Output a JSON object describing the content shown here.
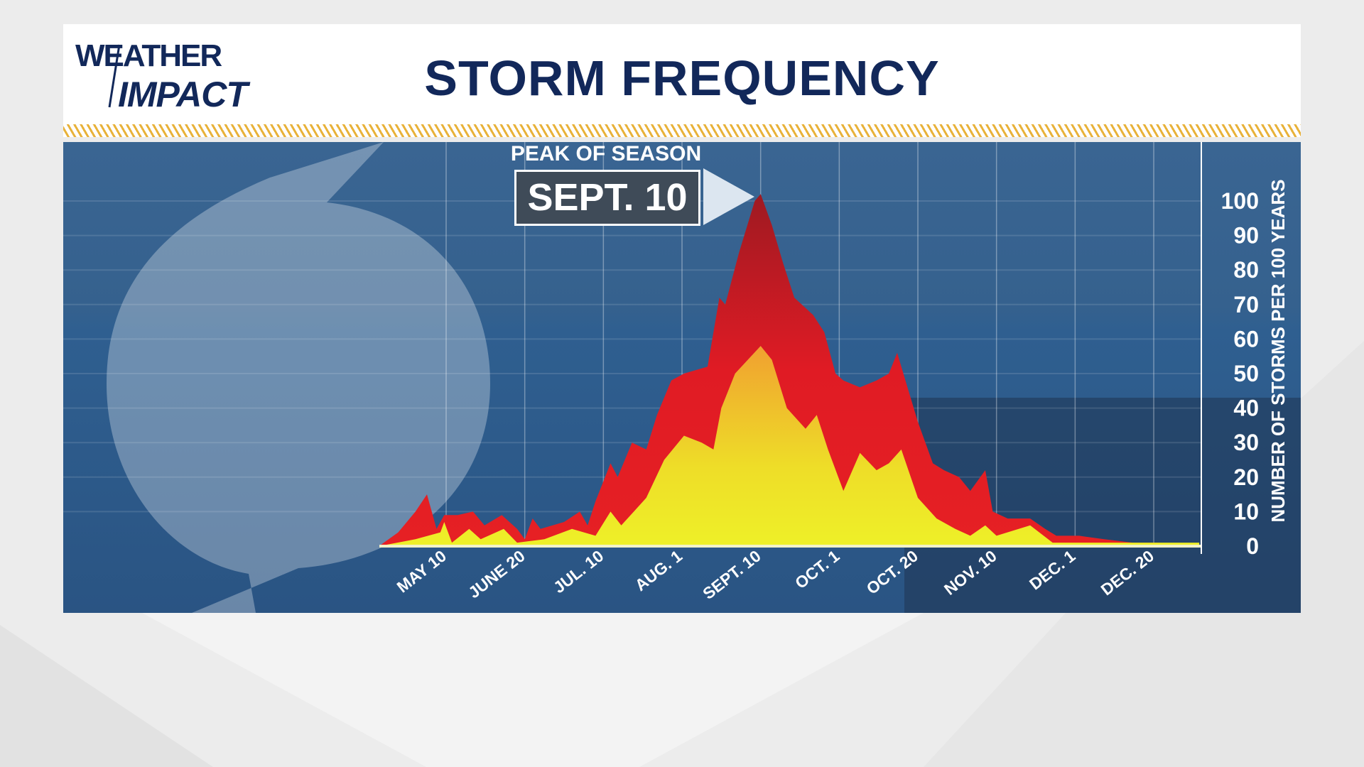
{
  "header": {
    "title": "STORM FREQUENCY",
    "logo_line1": "WEATHER",
    "logo_line2": "IMPACT"
  },
  "annotation": {
    "label": "PEAK OF SEASON",
    "date": "SEPT. 10"
  },
  "colors": {
    "title": "#12285a",
    "total_fill_top": "#9e1a22",
    "total_fill": "#e01b24",
    "subset_fill_top": "#f0a030",
    "subset_fill": "#eef028",
    "panel": "#2f5f8e",
    "stripe": "#e8b23a"
  },
  "chart_data": {
    "type": "area",
    "title": "STORM FREQUENCY",
    "ylabel": "NUMBER OF STORMS PER 100 YEARS",
    "xlabel": "",
    "ylim": [
      0,
      110
    ],
    "yticks": [
      "0",
      "10",
      "20",
      "30",
      "40",
      "50",
      "60",
      "70",
      "80",
      "90",
      "100"
    ],
    "xrange": [
      "04-05",
      "12-31"
    ],
    "xticks": [
      {
        "label": "MAY 10",
        "date": "05-10"
      },
      {
        "label": "JUNE 20",
        "date": "06-20"
      },
      {
        "label": "JUL. 10",
        "date": "07-10"
      },
      {
        "label": "AUG. 1",
        "date": "08-01"
      },
      {
        "label": "SEPT. 10",
        "date": "09-10"
      },
      {
        "label": "OCT. 1",
        "date": "10-01"
      },
      {
        "label": "OCT. 20",
        "date": "10-20"
      },
      {
        "label": "NOV. 10",
        "date": "11-10"
      },
      {
        "label": "DEC. 1",
        "date": "12-01"
      },
      {
        "label": "DEC. 20",
        "date": "12-20"
      }
    ],
    "grid": true,
    "series": [
      {
        "points": [
          [
            "04-05",
            0
          ],
          [
            "04-15",
            4
          ],
          [
            "04-24",
            10
          ],
          [
            "04-30",
            15
          ],
          [
            "05-05",
            5
          ],
          [
            "05-09",
            9
          ],
          [
            "05-16",
            9
          ],
          [
            "05-24",
            10
          ],
          [
            "05-30",
            6
          ],
          [
            "06-08",
            9
          ],
          [
            "06-16",
            5
          ],
          [
            "06-20",
            2
          ],
          [
            "06-22",
            8
          ],
          [
            "06-24",
            5
          ],
          [
            "06-30",
            7
          ],
          [
            "07-04",
            10
          ],
          [
            "07-06",
            6
          ],
          [
            "07-08",
            13
          ],
          [
            "07-12",
            24
          ],
          [
            "07-14",
            20
          ],
          [
            "07-18",
            30
          ],
          [
            "07-22",
            28
          ],
          [
            "07-25",
            38
          ],
          [
            "07-29",
            48
          ],
          [
            "08-02",
            50
          ],
          [
            "08-14",
            52
          ],
          [
            "08-20",
            72
          ],
          [
            "08-23",
            70
          ],
          [
            "08-30",
            85
          ],
          [
            "09-07",
            100
          ],
          [
            "09-10",
            102
          ],
          [
            "09-13",
            93
          ],
          [
            "09-16",
            82
          ],
          [
            "09-19",
            72
          ],
          [
            "09-24",
            67
          ],
          [
            "09-27",
            62
          ],
          [
            "09-30",
            50
          ],
          [
            "10-02",
            48
          ],
          [
            "10-06",
            46
          ],
          [
            "10-10",
            48
          ],
          [
            "10-13",
            50
          ],
          [
            "10-15",
            56
          ],
          [
            "10-17",
            48
          ],
          [
            "10-20",
            36
          ],
          [
            "10-24",
            24
          ],
          [
            "10-27",
            22
          ],
          [
            "10-31",
            20
          ],
          [
            "11-03",
            16
          ],
          [
            "11-07",
            22
          ],
          [
            "11-09",
            10
          ],
          [
            "11-13",
            8
          ],
          [
            "11-19",
            8
          ],
          [
            "11-23",
            5
          ],
          [
            "11-26",
            3
          ],
          [
            "12-02",
            3
          ],
          [
            "12-08",
            2
          ],
          [
            "12-15",
            1
          ],
          [
            "12-21",
            1
          ],
          [
            "12-31",
            0
          ]
        ]
      },
      {
        "points": [
          [
            "04-05",
            0
          ],
          [
            "04-24",
            2
          ],
          [
            "05-07",
            4
          ],
          [
            "05-09",
            7
          ],
          [
            "05-13",
            1
          ],
          [
            "05-22",
            5
          ],
          [
            "05-28",
            2
          ],
          [
            "06-09",
            5
          ],
          [
            "06-16",
            1
          ],
          [
            "06-25",
            2
          ],
          [
            "07-02",
            5
          ],
          [
            "07-08",
            3
          ],
          [
            "07-12",
            10
          ],
          [
            "07-15",
            6
          ],
          [
            "07-22",
            14
          ],
          [
            "07-27",
            25
          ],
          [
            "08-02",
            32
          ],
          [
            "08-11",
            30
          ],
          [
            "08-17",
            28
          ],
          [
            "08-21",
            40
          ],
          [
            "08-28",
            50
          ],
          [
            "09-10",
            58
          ],
          [
            "09-13",
            54
          ],
          [
            "09-17",
            40
          ],
          [
            "09-22",
            34
          ],
          [
            "09-25",
            38
          ],
          [
            "09-28",
            28
          ],
          [
            "10-02",
            16
          ],
          [
            "10-06",
            27
          ],
          [
            "10-10",
            22
          ],
          [
            "10-13",
            24
          ],
          [
            "10-16",
            28
          ],
          [
            "10-20",
            14
          ],
          [
            "10-25",
            8
          ],
          [
            "10-30",
            5
          ],
          [
            "11-03",
            3
          ],
          [
            "11-07",
            6
          ],
          [
            "11-10",
            3
          ],
          [
            "11-19",
            6
          ],
          [
            "11-25",
            1
          ],
          [
            "12-31",
            1
          ]
        ]
      }
    ],
    "annotations": [
      {
        "text": "PEAK OF SEASON",
        "date": "09-10",
        "label": "SEPT. 10"
      }
    ]
  }
}
